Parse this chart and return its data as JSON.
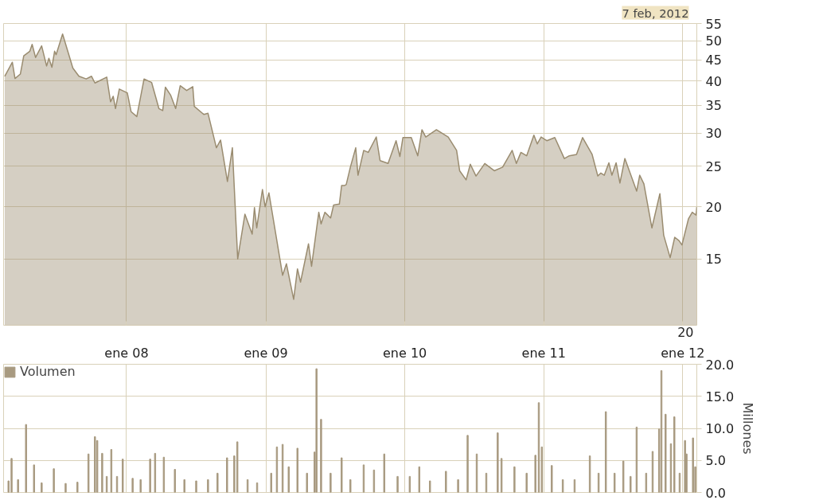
{
  "chart_data": [
    {
      "type": "area",
      "subtitle": "7 feb, 2012",
      "x": [
        "2007-02-15",
        "2007-03-07",
        "2007-03-14",
        "2007-03-28",
        "2007-04-06",
        "2007-04-22",
        "2007-04-28",
        "2007-05-07",
        "2007-05-23",
        "2007-06-05",
        "2007-06-11",
        "2007-06-19",
        "2007-06-26",
        "2007-06-30",
        "2007-07-17",
        "2007-08-13",
        "2007-08-29",
        "2007-09-17",
        "2007-10-01",
        "2007-10-10",
        "2007-11-10",
        "2007-11-20",
        "2007-11-27",
        "2007-12-03",
        "2007-12-13",
        "2008-01-03",
        "2008-01-13",
        "2008-01-28",
        "2008-02-16",
        "2008-03-07",
        "2008-03-26",
        "2008-04-05",
        "2008-04-12",
        "2008-04-26",
        "2008-05-09",
        "2008-05-21",
        "2008-06-07",
        "2008-06-23",
        "2008-06-27",
        "2008-07-22",
        "2008-08-02",
        "2008-08-24",
        "2008-09-04",
        "2008-09-22",
        "2008-10-05",
        "2008-10-19",
        "2008-11-07",
        "2008-11-26",
        "2008-12-02",
        "2008-12-08",
        "2008-12-23",
        "2008-12-30",
        "2009-01-09",
        "2009-02-14",
        "2009-02-24",
        "2009-03-15",
        "2009-03-25",
        "2009-04-02",
        "2009-04-23",
        "2009-05-01",
        "2009-05-20",
        "2009-05-26",
        "2009-06-05",
        "2009-06-20",
        "2009-06-28",
        "2009-07-13",
        "2009-07-19",
        "2009-07-27",
        "2009-07-31",
        "2009-08-11",
        "2009-08-25",
        "2009-08-31",
        "2009-09-15",
        "2009-09-27",
        "2009-10-18",
        "2009-10-28",
        "2009-11-18",
        "2009-12-09",
        "2009-12-19",
        "2009-12-27",
        "2010-01-18",
        "2010-02-04",
        "2010-02-15",
        "2010-02-25",
        "2010-03-25",
        "2010-04-25",
        "2010-05-17",
        "2010-05-25",
        "2010-06-11",
        "2010-06-22",
        "2010-07-07",
        "2010-07-30",
        "2010-08-24",
        "2010-09-15",
        "2010-10-10",
        "2010-10-21",
        "2010-11-02",
        "2010-11-17",
        "2010-12-06",
        "2010-12-15",
        "2010-12-25",
        "2011-01-09",
        "2011-01-30",
        "2011-02-24",
        "2011-03-09",
        "2011-03-28",
        "2011-04-13",
        "2011-05-08",
        "2011-05-23",
        "2011-05-31",
        "2011-06-09",
        "2011-06-21",
        "2011-06-29",
        "2011-07-10",
        "2011-07-20",
        "2011-08-02",
        "2011-09-02",
        "2011-09-10",
        "2011-09-21",
        "2011-10-12",
        "2011-11-02",
        "2011-11-12",
        "2011-11-29",
        "2011-12-11",
        "2011-12-22",
        "2011-12-30",
        "2012-01-16",
        "2012-01-26",
        "2012-02-05",
        "2012-02-07"
      ],
      "series": [
        {
          "color": "#9a8c70",
          "values": [
            41.1,
            44.4,
            40.6,
            41.6,
            46.0,
            47.2,
            49.0,
            45.6,
            48.6,
            43.5,
            45.4,
            43.2,
            47.2,
            46.3,
            51.9,
            43.0,
            41.1,
            40.5,
            41.1,
            39.6,
            40.9,
            35.7,
            36.8,
            34.4,
            38.3,
            37.5,
            33.8,
            32.9,
            40.5,
            39.7,
            34.4,
            34.0,
            38.7,
            37.0,
            34.4,
            39.0,
            38.0,
            38.8,
            34.8,
            33.3,
            33.5,
            27.7,
            28.9,
            23.0,
            27.7,
            15.0,
            19.2,
            17.2,
            19.9,
            17.8,
            22.0,
            20.0,
            21.6,
            13.7,
            14.6,
            12.0,
            14.2,
            13.2,
            16.3,
            14.4,
            19.4,
            18.2,
            19.4,
            18.8,
            20.2,
            20.3,
            22.5,
            22.5,
            22.6,
            24.9,
            27.7,
            23.8,
            27.3,
            27.0,
            29.4,
            25.8,
            25.4,
            28.8,
            26.4,
            29.3,
            29.3,
            26.5,
            30.6,
            29.4,
            30.6,
            29.4,
            27.3,
            24.4,
            23.2,
            25.3,
            23.7,
            25.4,
            24.4,
            24.9,
            27.3,
            25.4,
            27.0,
            26.5,
            29.7,
            28.3,
            29.4,
            28.8,
            29.3,
            26.1,
            26.5,
            26.7,
            29.3,
            26.7,
            23.7,
            24.1,
            23.8,
            25.5,
            23.8,
            25.5,
            22.8,
            26.1,
            21.8,
            23.8,
            22.7,
            17.8,
            21.5,
            17.1,
            15.1,
            16.9,
            16.6,
            16.2,
            18.7,
            19.4,
            19.1,
            20.0
          ]
        }
      ],
      "log": "y",
      "xlim": [
        "2007-02-12",
        "2012-02-07"
      ],
      "xticks": [
        {
          "value": "2008-01-01",
          "label": null
        },
        {
          "value": "2009-01-01",
          "label": null
        },
        {
          "value": "2010-01-01",
          "label": null
        },
        {
          "value": "2011-01-01",
          "label": null
        },
        {
          "value": "2012-01-01",
          "label": null
        }
      ],
      "ylim": [
        10.4,
        55
      ],
      "yticks": [
        55,
        50,
        45,
        40,
        35,
        30,
        25,
        20,
        15
      ],
      "annotations": [
        "20"
      ],
      "tick_labels": "y",
      "grid": true
    },
    {
      "type": "bar",
      "x": [
        "2007-02-25",
        "2007-03-05",
        "2007-03-22",
        "2007-04-12",
        "2007-05-03",
        "2007-05-23",
        "2007-06-24",
        "2007-07-25",
        "2007-08-25",
        "2007-09-23",
        "2007-10-10",
        "2007-10-16",
        "2007-10-29",
        "2007-11-10",
        "2007-11-22",
        "2007-12-07",
        "2007-12-22",
        "2008-01-17",
        "2008-02-07",
        "2008-03-03",
        "2008-03-16",
        "2008-04-08",
        "2008-05-07",
        "2008-06-01",
        "2008-07-02",
        "2008-08-02",
        "2008-08-27",
        "2008-09-21",
        "2008-10-10",
        "2008-10-18",
        "2008-11-14",
        "2008-12-09",
        "2009-01-15",
        "2009-01-30",
        "2009-02-14",
        "2009-03-02",
        "2009-03-25",
        "2009-04-19",
        "2009-05-09",
        "2009-05-14",
        "2009-05-26",
        "2009-06-20",
        "2009-07-19",
        "2009-08-11",
        "2009-09-15",
        "2009-10-12",
        "2009-11-08",
        "2009-12-13",
        "2010-01-14",
        "2010-02-08",
        "2010-03-08",
        "2010-04-19",
        "2010-05-21",
        "2010-06-15",
        "2010-07-09",
        "2010-08-03",
        "2010-09-02",
        "2010-09-12",
        "2010-10-16",
        "2010-11-17",
        "2010-12-10",
        "2010-12-19",
        "2010-12-27",
        "2011-01-22",
        "2011-02-20",
        "2011-03-23",
        "2011-05-02",
        "2011-05-25",
        "2011-06-13",
        "2011-07-06",
        "2011-07-29",
        "2011-08-17",
        "2011-09-02",
        "2011-09-27",
        "2011-10-14",
        "2011-10-31",
        "2011-11-06",
        "2011-11-17",
        "2011-12-01",
        "2011-12-10",
        "2011-12-24",
        "2012-01-07",
        "2012-01-11",
        "2012-01-28",
        "2012-02-03"
      ],
      "series": [
        {
          "name": "Volumen",
          "color": "#a89a80",
          "values": [
            1.8,
            5.3,
            2.0,
            10.6,
            4.3,
            1.5,
            3.7,
            1.4,
            1.6,
            6.0,
            8.7,
            8.1,
            6.1,
            2.5,
            6.7,
            2.5,
            5.2,
            2.2,
            2.0,
            5.2,
            6.1,
            5.5,
            3.6,
            2.0,
            1.8,
            2.0,
            3.0,
            5.4,
            5.7,
            7.9,
            2.0,
            1.5,
            3.0,
            7.1,
            7.5,
            4.0,
            6.9,
            3.0,
            6.3,
            19.3,
            11.4,
            3.0,
            5.4,
            2.0,
            4.3,
            3.5,
            6.0,
            2.5,
            2.5,
            4.0,
            1.8,
            3.3,
            2.0,
            8.9,
            6.0,
            3.0,
            9.3,
            5.3,
            4.0,
            3.0,
            5.8,
            14.0,
            7.1,
            4.2,
            2.0,
            2.0,
            5.7,
            3.0,
            12.6,
            3.0,
            4.9,
            2.5,
            10.2,
            3.0,
            6.4,
            9.9,
            19.0,
            12.2,
            7.6,
            11.8,
            3.0,
            8.1,
            6.0,
            8.5,
            4.0
          ]
        }
      ],
      "xlim": [
        "2007-02-12",
        "2012-02-07"
      ],
      "xticks": [
        {
          "value": "2008-01-01",
          "label": "ene 08"
        },
        {
          "value": "2009-01-01",
          "label": "ene 09"
        },
        {
          "value": "2010-01-01",
          "label": "ene 10"
        },
        {
          "value": "2011-01-01",
          "label": "ene 11"
        },
        {
          "value": "2012-01-01",
          "label": "ene 12"
        }
      ],
      "ylim": [
        0,
        20
      ],
      "yticks": [
        {
          "value": 0,
          "label": "0.0"
        },
        {
          "value": 5,
          "label": "5.0"
        },
        {
          "value": 10,
          "label": "10.0"
        },
        {
          "value": 15,
          "label": "15.0"
        },
        {
          "value": 20,
          "label": "20.0"
        }
      ],
      "ylabel": "Millones",
      "legend": "top left",
      "grid": true
    }
  ]
}
